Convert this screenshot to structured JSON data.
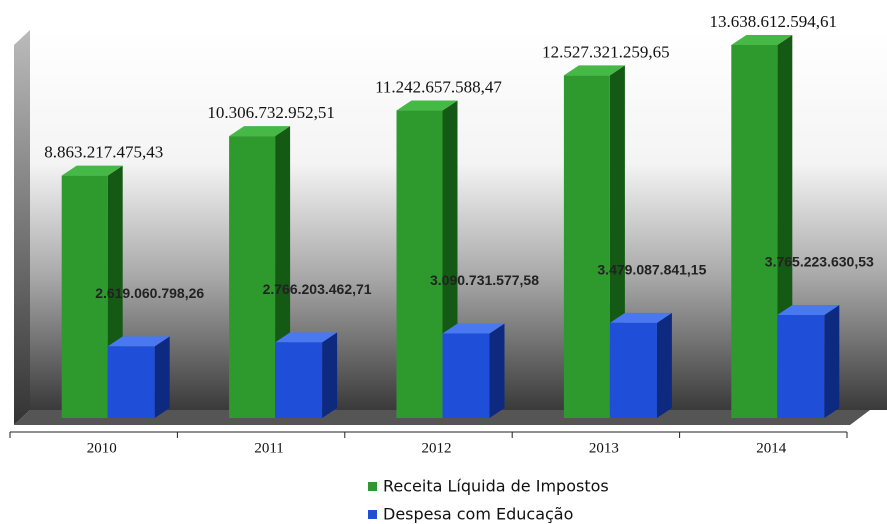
{
  "chart_data": {
    "type": "bar3d",
    "categories": [
      "2010",
      "2011",
      "2012",
      "2013",
      "2014"
    ],
    "series": [
      {
        "name": "Receita Líquida de Impostos",
        "color": "#2e9a2e",
        "values": [
          8863217475.43,
          10306732952.51,
          11242657588.47,
          12527321259.65,
          13638612594.61
        ],
        "value_labels": [
          "8.863.217.475,43",
          "10.306.732.952,51",
          "11.242.657.588,47",
          "12.527.321.259,65",
          "13.638.612.594,61"
        ]
      },
      {
        "name": "Despesa com Educação",
        "color": "#1f4fd8",
        "values": [
          2619060798.26,
          2766203462.71,
          3090731577.58,
          3479087841.15,
          3765223630.53
        ],
        "value_labels": [
          "2.619.060.798,26",
          "2.766.203.462,71",
          "3.090.731.577,58",
          "3.479.087.841,15",
          "3.765.223.630,53"
        ]
      }
    ]
  }
}
